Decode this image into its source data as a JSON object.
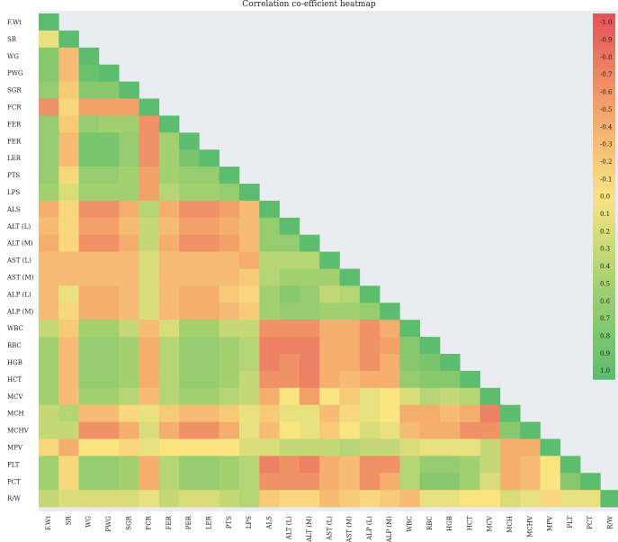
{
  "chart_data": {
    "type": "heatmap",
    "title": "Correlation co-efficient heatmap",
    "variables": [
      "F.Wt",
      "SR",
      "WG",
      "PWG",
      "SGR",
      "FCR",
      "FER",
      "PER",
      "LER",
      "PTS",
      "LPS",
      "ALS",
      "ALT (L)",
      "ALT (M)",
      "AST (L)",
      "AST (M)",
      "ALP (L)",
      "ALP (M)",
      "WBC",
      "RBC",
      "HGB",
      "HCT",
      "MCV",
      "MCH",
      "MCHV",
      "MPV",
      "PLT",
      "PCT",
      "R/W"
    ],
    "colorbar": {
      "ticks": [
        "-1.0",
        "-0.9",
        "-0.8",
        "-0.7",
        "-0.6",
        "-0.5",
        "-0.4",
        "-0.3",
        "-0.2",
        "-0.1",
        "0.0",
        "0.1",
        "0.2",
        "0.3",
        "0.4",
        "0.5",
        "0.6",
        "0.7",
        "0.8",
        "0.9",
        "1.0"
      ],
      "range": [
        -1,
        1
      ],
      "colors": [
        "#e8525a",
        "#f2a169",
        "#fbe581",
        "#a3d06f",
        "#5cbd6e"
      ]
    },
    "lower_triangle_values": [
      [
        1.0
      ],
      [
        0.1,
        1.0
      ],
      [
        0.7,
        -0.3,
        1.0
      ],
      [
        0.7,
        -0.3,
        0.9,
        1.0
      ],
      [
        0.6,
        -0.2,
        0.7,
        0.7,
        1.0
      ],
      [
        -0.6,
        -0.1,
        -0.5,
        -0.5,
        -0.5,
        1.0
      ],
      [
        0.6,
        -0.2,
        0.6,
        0.5,
        0.5,
        -0.6,
        1.0
      ],
      [
        0.6,
        -0.3,
        0.8,
        0.8,
        0.6,
        -0.6,
        0.5,
        1.0
      ],
      [
        0.6,
        -0.3,
        0.8,
        0.8,
        0.6,
        -0.6,
        0.5,
        0.8,
        1.0
      ],
      [
        0.6,
        -0.1,
        0.6,
        0.6,
        0.5,
        -0.5,
        0.5,
        0.6,
        0.6,
        1.0
      ],
      [
        0.5,
        0.2,
        0.5,
        0.5,
        0.5,
        -0.5,
        0.4,
        0.5,
        0.5,
        0.6,
        1.0
      ],
      [
        -0.4,
        -0.1,
        -0.6,
        -0.6,
        -0.4,
        0.4,
        -0.4,
        -0.6,
        -0.6,
        -0.5,
        -0.3,
        1.0
      ],
      [
        -0.3,
        -0.1,
        -0.5,
        -0.5,
        -0.3,
        0.3,
        -0.3,
        -0.5,
        -0.5,
        -0.4,
        -0.3,
        0.6,
        1.0
      ],
      [
        -0.4,
        -0.1,
        -0.6,
        -0.6,
        -0.4,
        0.3,
        -0.4,
        -0.6,
        -0.6,
        -0.5,
        -0.3,
        0.6,
        0.6,
        1.0
      ],
      [
        -0.3,
        -0.3,
        -0.3,
        -0.3,
        -0.3,
        0.2,
        -0.3,
        -0.3,
        -0.3,
        -0.3,
        -0.4,
        0.4,
        0.4,
        0.4,
        1.0
      ],
      [
        -0.3,
        -0.3,
        -0.3,
        -0.3,
        -0.3,
        0.2,
        -0.3,
        -0.3,
        -0.3,
        -0.3,
        -0.2,
        0.4,
        0.5,
        0.5,
        0.5,
        1.0
      ],
      [
        -0.3,
        0.1,
        -0.4,
        -0.4,
        -0.3,
        0.2,
        -0.3,
        -0.4,
        -0.4,
        -0.2,
        -0.1,
        0.5,
        0.7,
        0.6,
        0.3,
        0.4,
        1.0
      ],
      [
        -0.3,
        -0.1,
        -0.4,
        -0.4,
        -0.3,
        0.2,
        -0.3,
        -0.4,
        -0.4,
        -0.3,
        -0.2,
        0.5,
        0.6,
        0.6,
        0.5,
        0.5,
        0.6,
        1.0
      ],
      [
        0.3,
        -0.2,
        0.5,
        0.5,
        0.3,
        -0.3,
        0.2,
        0.5,
        0.5,
        0.3,
        0.3,
        -0.6,
        -0.6,
        -0.6,
        -0.4,
        -0.4,
        -0.6,
        -0.4,
        1.0
      ],
      [
        0.5,
        -0.3,
        0.6,
        0.6,
        0.5,
        -0.4,
        0.4,
        0.6,
        0.6,
        0.5,
        0.4,
        -0.7,
        -0.7,
        -0.7,
        -0.4,
        -0.4,
        -0.6,
        -0.5,
        0.7,
        1.0
      ],
      [
        0.5,
        -0.3,
        0.6,
        0.6,
        0.5,
        -0.4,
        0.4,
        0.6,
        0.6,
        0.5,
        0.4,
        -0.7,
        -0.6,
        -0.7,
        -0.4,
        -0.4,
        -0.6,
        -0.4,
        0.7,
        0.8,
        1.0
      ],
      [
        0.5,
        -0.3,
        0.6,
        0.6,
        0.5,
        -0.4,
        0.4,
        0.6,
        0.6,
        0.5,
        0.3,
        -0.6,
        -0.6,
        -0.7,
        -0.4,
        -0.3,
        -0.4,
        -0.4,
        0.6,
        0.7,
        0.7,
        1.0
      ],
      [
        0.5,
        -0.3,
        0.5,
        0.5,
        0.4,
        -0.3,
        0.4,
        0.5,
        0.5,
        0.4,
        0.3,
        -0.4,
        0.0,
        -0.5,
        0.0,
        -0.2,
        0.1,
        0.0,
        0.2,
        0.4,
        0.3,
        0.4,
        1.0
      ],
      [
        0.3,
        0.4,
        -0.3,
        -0.3,
        -0.1,
        0.1,
        -0.2,
        -0.3,
        -0.3,
        -0.2,
        0.1,
        -0.2,
        0.1,
        0.1,
        -0.3,
        -0.1,
        0.1,
        0.0,
        -0.4,
        -0.4,
        -0.3,
        -0.4,
        -0.7,
        1.0
      ],
      [
        0.3,
        0.3,
        -0.6,
        -0.6,
        -0.4,
        0.2,
        -0.4,
        -0.6,
        -0.6,
        -0.4,
        0.1,
        -0.3,
        0.0,
        0.1,
        -0.2,
        0.0,
        0.2,
        0.1,
        -0.3,
        -0.4,
        -0.4,
        -0.6,
        -0.6,
        0.7,
        1.0
      ],
      [
        -0.1,
        -0.4,
        0.0,
        0.0,
        -0.1,
        0.1,
        0.0,
        0.0,
        0.0,
        0.0,
        0.2,
        0.2,
        0.3,
        0.3,
        0.3,
        0.4,
        0.3,
        0.3,
        0.2,
        0.1,
        0.1,
        0.1,
        0.3,
        -0.4,
        -0.4,
        1.0
      ],
      [
        0.5,
        -0.1,
        0.6,
        0.6,
        0.5,
        -0.4,
        0.4,
        0.6,
        0.6,
        0.5,
        0.4,
        -0.7,
        -0.6,
        -0.7,
        -0.4,
        -0.3,
        -0.6,
        -0.6,
        0.4,
        0.6,
        0.6,
        0.5,
        0.3,
        -0.4,
        -0.3,
        0.0,
        1.0
      ],
      [
        0.5,
        -0.1,
        0.6,
        0.6,
        0.5,
        -0.4,
        0.4,
        0.6,
        0.6,
        0.5,
        0.4,
        -0.6,
        -0.6,
        -0.6,
        -0.4,
        -0.3,
        -0.6,
        -0.4,
        0.4,
        0.7,
        0.7,
        0.5,
        0.2,
        -0.4,
        -0.3,
        0.0,
        0.7,
        1.0
      ],
      [
        0.3,
        0.2,
        0.2,
        0.2,
        0.2,
        0.1,
        0.3,
        0.2,
        0.2,
        0.3,
        0.4,
        -0.2,
        -0.1,
        -0.1,
        -0.3,
        -0.2,
        -0.1,
        -0.2,
        -0.3,
        0.1,
        0.1,
        0.0,
        0.0,
        0.2,
        0.1,
        -0.1,
        0.1,
        0.1,
        1.0
      ]
    ]
  }
}
